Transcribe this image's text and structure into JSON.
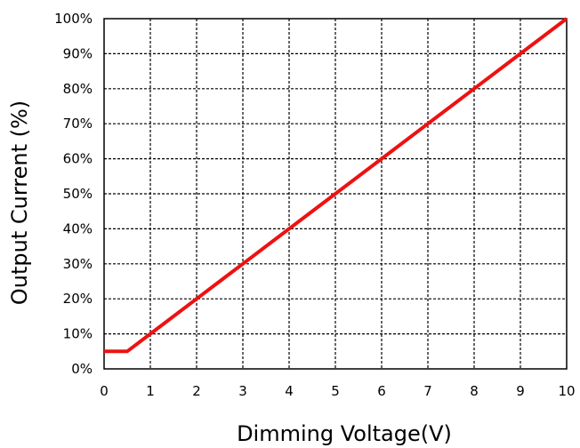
{
  "chart_data": {
    "type": "line",
    "title": "",
    "xlabel": "Dimming Voltage(V)",
    "ylabel": "Output  Current (%)",
    "xlim": [
      0,
      10
    ],
    "ylim": [
      0,
      100
    ],
    "x_ticks": [
      "0",
      "1",
      "2",
      "3",
      "4",
      "5",
      "6",
      "7",
      "8",
      "9",
      "10"
    ],
    "y_ticks": [
      "0%",
      "10%",
      "20%",
      "30%",
      "40%",
      "50%",
      "60%",
      "70%",
      "80%",
      "90%",
      "100%"
    ],
    "grid": true,
    "series": [
      {
        "color": "#ee1111",
        "points": [
          [
            0,
            5
          ],
          [
            0.5,
            5
          ],
          [
            1,
            10
          ],
          [
            2,
            20
          ],
          [
            3,
            30
          ],
          [
            4,
            40
          ],
          [
            5,
            50
          ],
          [
            6,
            60
          ],
          [
            7,
            70
          ],
          [
            8,
            80
          ],
          [
            9,
            90
          ],
          [
            10,
            100
          ]
        ]
      }
    ]
  }
}
